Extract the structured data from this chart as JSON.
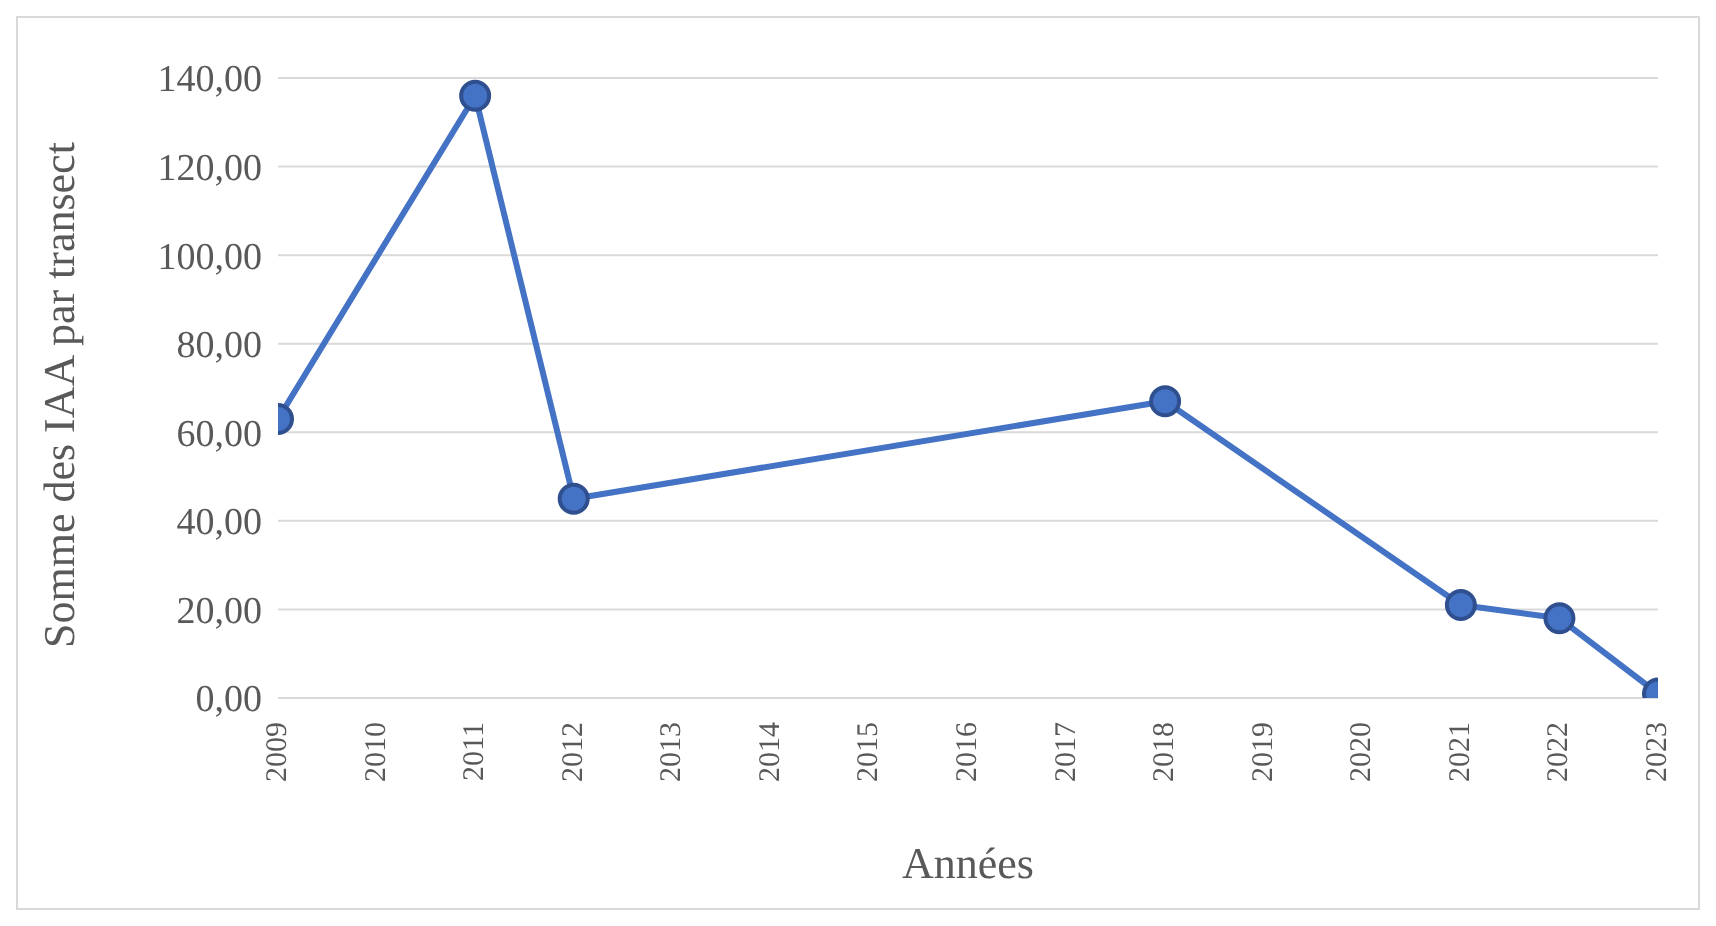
{
  "chart_data": {
    "type": "line",
    "xlabel": "Années",
    "ylabel": "Somme des IAA par transect",
    "x": [
      2009,
      2011,
      2012,
      2018,
      2021,
      2022,
      2023
    ],
    "series": [
      {
        "color": "#4472c4",
        "values": [
          63,
          136,
          45,
          67,
          21,
          18,
          1
        ]
      }
    ],
    "xlim": [
      2009,
      2023
    ],
    "xticks": [
      2009,
      2010,
      2011,
      2012,
      2013,
      2014,
      2015,
      2016,
      2017,
      2018,
      2019,
      2020,
      2021,
      2022,
      2023
    ],
    "ylim": [
      0,
      140
    ],
    "yticks": [
      {
        "value": 0,
        "label": "0,00"
      },
      {
        "value": 20,
        "label": "20,00"
      },
      {
        "value": 40,
        "label": "40,00"
      },
      {
        "value": 60,
        "label": "60,00"
      },
      {
        "value": 80,
        "label": "80,00"
      },
      {
        "value": 100,
        "label": "100,00"
      },
      {
        "value": 120,
        "label": "120,00"
      },
      {
        "value": 140,
        "label": "140,00"
      }
    ],
    "grid": "y",
    "marker": "circle",
    "line_style": "solid",
    "legend": false
  }
}
